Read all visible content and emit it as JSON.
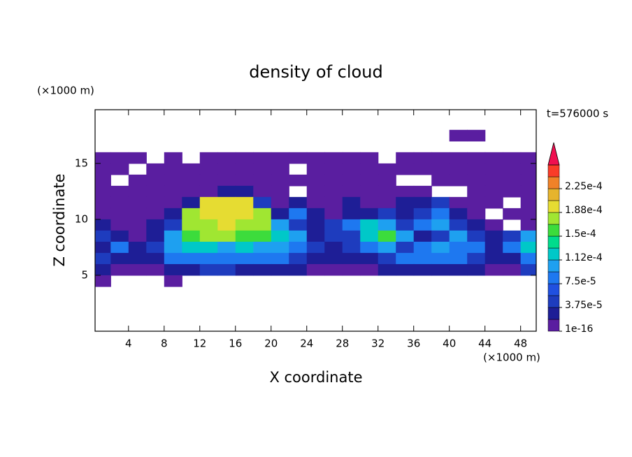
{
  "chart_data": {
    "type": "contour",
    "title": "density of cloud",
    "x_label": "X coordinate",
    "y_label": "Z coordinate",
    "x_unit": "(×1000 m)",
    "y_unit": "(×1000 m)",
    "time_label": "t=576000 s",
    "xlim": [
      0.25,
      49.75
    ],
    "ylim": [
      0,
      19.8
    ],
    "xticks": [
      4,
      8,
      12,
      16,
      20,
      24,
      28,
      32,
      36,
      40,
      44,
      48
    ],
    "yticks": [
      5,
      10,
      15
    ],
    "x": [
      1,
      3,
      5,
      7,
      9,
      11,
      13,
      15,
      17,
      19,
      21,
      23,
      25,
      27,
      29,
      31,
      33,
      35,
      37,
      39,
      41,
      43,
      45,
      47,
      49
    ],
    "y": [
      17.5,
      16.5,
      15.5,
      14.5,
      13.5,
      12.5,
      11.5,
      10.5,
      9.5,
      8.5,
      7.5,
      6.5,
      5.5,
      4.5
    ],
    "values": [
      [
        null,
        null,
        null,
        null,
        null,
        null,
        null,
        null,
        null,
        null,
        null,
        null,
        null,
        null,
        null,
        null,
        null,
        null,
        null,
        null,
        5e-06,
        5e-06,
        null,
        null,
        null
      ],
      [
        null,
        null,
        null,
        null,
        null,
        null,
        null,
        null,
        null,
        null,
        null,
        null,
        null,
        null,
        null,
        null,
        null,
        null,
        null,
        null,
        null,
        null,
        null,
        null,
        null
      ],
      [
        5e-06,
        5e-06,
        5e-06,
        null,
        5e-06,
        null,
        5e-06,
        5e-06,
        5e-06,
        5e-06,
        5e-06,
        5e-06,
        5e-06,
        5e-06,
        5e-06,
        5e-06,
        null,
        5e-06,
        5e-06,
        5e-06,
        5e-06,
        5e-06,
        5e-06,
        5e-06,
        5e-06
      ],
      [
        5e-06,
        5e-06,
        null,
        5e-06,
        5e-06,
        5e-06,
        5e-06,
        5e-06,
        5e-06,
        5e-06,
        5e-06,
        null,
        5e-06,
        5e-06,
        5e-06,
        5e-06,
        5e-06,
        5e-06,
        5e-06,
        5e-06,
        5e-06,
        5e-06,
        5e-06,
        5e-06,
        5e-06
      ],
      [
        5e-06,
        null,
        5e-06,
        5e-06,
        5e-06,
        5e-06,
        5e-06,
        5e-06,
        5e-06,
        5e-06,
        5e-06,
        5e-06,
        5e-06,
        5e-06,
        5e-06,
        5e-06,
        5e-06,
        null,
        null,
        5e-06,
        5e-06,
        5e-06,
        5e-06,
        5e-06,
        5e-06
      ],
      [
        5e-06,
        5e-06,
        5e-06,
        5e-06,
        5e-06,
        5e-06,
        5e-06,
        2.5e-05,
        2.5e-05,
        5e-06,
        5e-06,
        null,
        5e-06,
        5e-06,
        5e-06,
        5e-06,
        5e-06,
        5e-06,
        5e-06,
        null,
        null,
        5e-06,
        5e-06,
        5e-06,
        5e-06
      ],
      [
        5e-06,
        5e-06,
        5e-06,
        5e-06,
        5e-06,
        2.5e-05,
        0.000195,
        0.000195,
        0.000195,
        5e-05,
        5e-06,
        2.5e-05,
        5e-06,
        5e-06,
        2.5e-05,
        5e-06,
        5e-06,
        2.5e-05,
        2.5e-05,
        5e-05,
        5e-06,
        5e-06,
        5e-06,
        null,
        5e-06
      ],
      [
        5e-06,
        5e-06,
        5e-06,
        5e-06,
        2.5e-05,
        0.000175,
        0.000195,
        0.000195,
        0.000195,
        0.000175,
        2.5e-05,
        8e-05,
        2.5e-05,
        5e-06,
        2.5e-05,
        2.5e-05,
        5e-05,
        2.5e-05,
        5e-05,
        8e-05,
        2.5e-05,
        5e-06,
        null,
        5e-06,
        5e-06
      ],
      [
        2.5e-05,
        5e-06,
        5e-06,
        2.5e-05,
        5e-05,
        0.000175,
        0.000175,
        0.000195,
        0.000175,
        0.000175,
        0.0001,
        5e-05,
        2.5e-05,
        5e-05,
        8e-05,
        0.00013,
        0.0001,
        5e-05,
        8e-05,
        0.0001,
        5e-05,
        2.5e-05,
        5e-06,
        null,
        5e-06
      ],
      [
        5e-05,
        2.5e-05,
        5e-06,
        2.5e-05,
        0.0001,
        0.000155,
        0.000175,
        0.000175,
        0.000155,
        0.000155,
        0.00013,
        0.0001,
        2.5e-05,
        5e-05,
        5e-05,
        0.00013,
        0.000155,
        0.0001,
        2.5e-05,
        5e-05,
        0.0001,
        5e-05,
        2.5e-05,
        5e-05,
        0.0001
      ],
      [
        2.5e-05,
        8e-05,
        2.5e-05,
        5e-05,
        0.0001,
        0.00013,
        0.00013,
        0.0001,
        0.00013,
        0.0001,
        0.0001,
        8e-05,
        5e-05,
        2.5e-05,
        5e-05,
        8e-05,
        0.0001,
        5e-05,
        8e-05,
        0.0001,
        8e-05,
        8e-05,
        2.5e-05,
        8e-05,
        0.00013
      ],
      [
        5e-05,
        2.5e-05,
        2.5e-05,
        2.5e-05,
        8e-05,
        8e-05,
        8e-05,
        8e-05,
        8e-05,
        8e-05,
        8e-05,
        5e-05,
        2.5e-05,
        2.5e-05,
        2.5e-05,
        2.5e-05,
        5e-05,
        8e-05,
        8e-05,
        8e-05,
        8e-05,
        5e-05,
        2.5e-05,
        2.5e-05,
        8e-05
      ],
      [
        2.5e-05,
        5e-06,
        5e-06,
        5e-06,
        2.5e-05,
        2.5e-05,
        5e-05,
        5e-05,
        2.5e-05,
        2.5e-05,
        2.5e-05,
        2.5e-05,
        5e-06,
        5e-06,
        5e-06,
        5e-06,
        2.5e-05,
        2.5e-05,
        2.5e-05,
        2.5e-05,
        2.5e-05,
        2.5e-05,
        5e-06,
        5e-06,
        5e-05
      ],
      [
        5e-06,
        null,
        null,
        null,
        5e-06,
        null,
        null,
        null,
        null,
        null,
        null,
        null,
        null,
        null,
        null,
        null,
        null,
        null,
        null,
        null,
        null,
        null,
        null,
        null,
        null
      ]
    ],
    "levels": [
      1e-16,
      1.875e-05,
      3.75e-05,
      5.625e-05,
      7.5e-05,
      9.375e-05,
      0.0001125,
      0.00013125,
      0.00015,
      0.00016875,
      0.0001875,
      0.00020625,
      0.000225,
      0.00024375
    ],
    "colors": [
      "#5a1ea0",
      "#1e1e96",
      "#1e3cbe",
      "#2050e0",
      "#1e78f0",
      "#1ea0f0",
      "#00c8c8",
      "#00dc8c",
      "#3cdc3c",
      "#a0e632",
      "#e6dc32",
      "#e6b42d",
      "#f08228",
      "#fa3c28",
      "#f00f50",
      "#f0a0a0"
    ],
    "colorbar_ticks": [
      1e-16,
      {
        "value": 3.75e-05,
        "label": "3.75e-5"
      },
      {
        "value": 7.5e-05,
        "label": "7.5e-5"
      },
      {
        "value": 0.0001125,
        "label": "1.12e-4"
      },
      {
        "value": 0.00015,
        "label": "1.5e-4"
      },
      {
        "value": 0.0001875,
        "label": "1.88e-4"
      },
      {
        "value": 0.000225,
        "label": "2.25e-4"
      }
    ]
  }
}
